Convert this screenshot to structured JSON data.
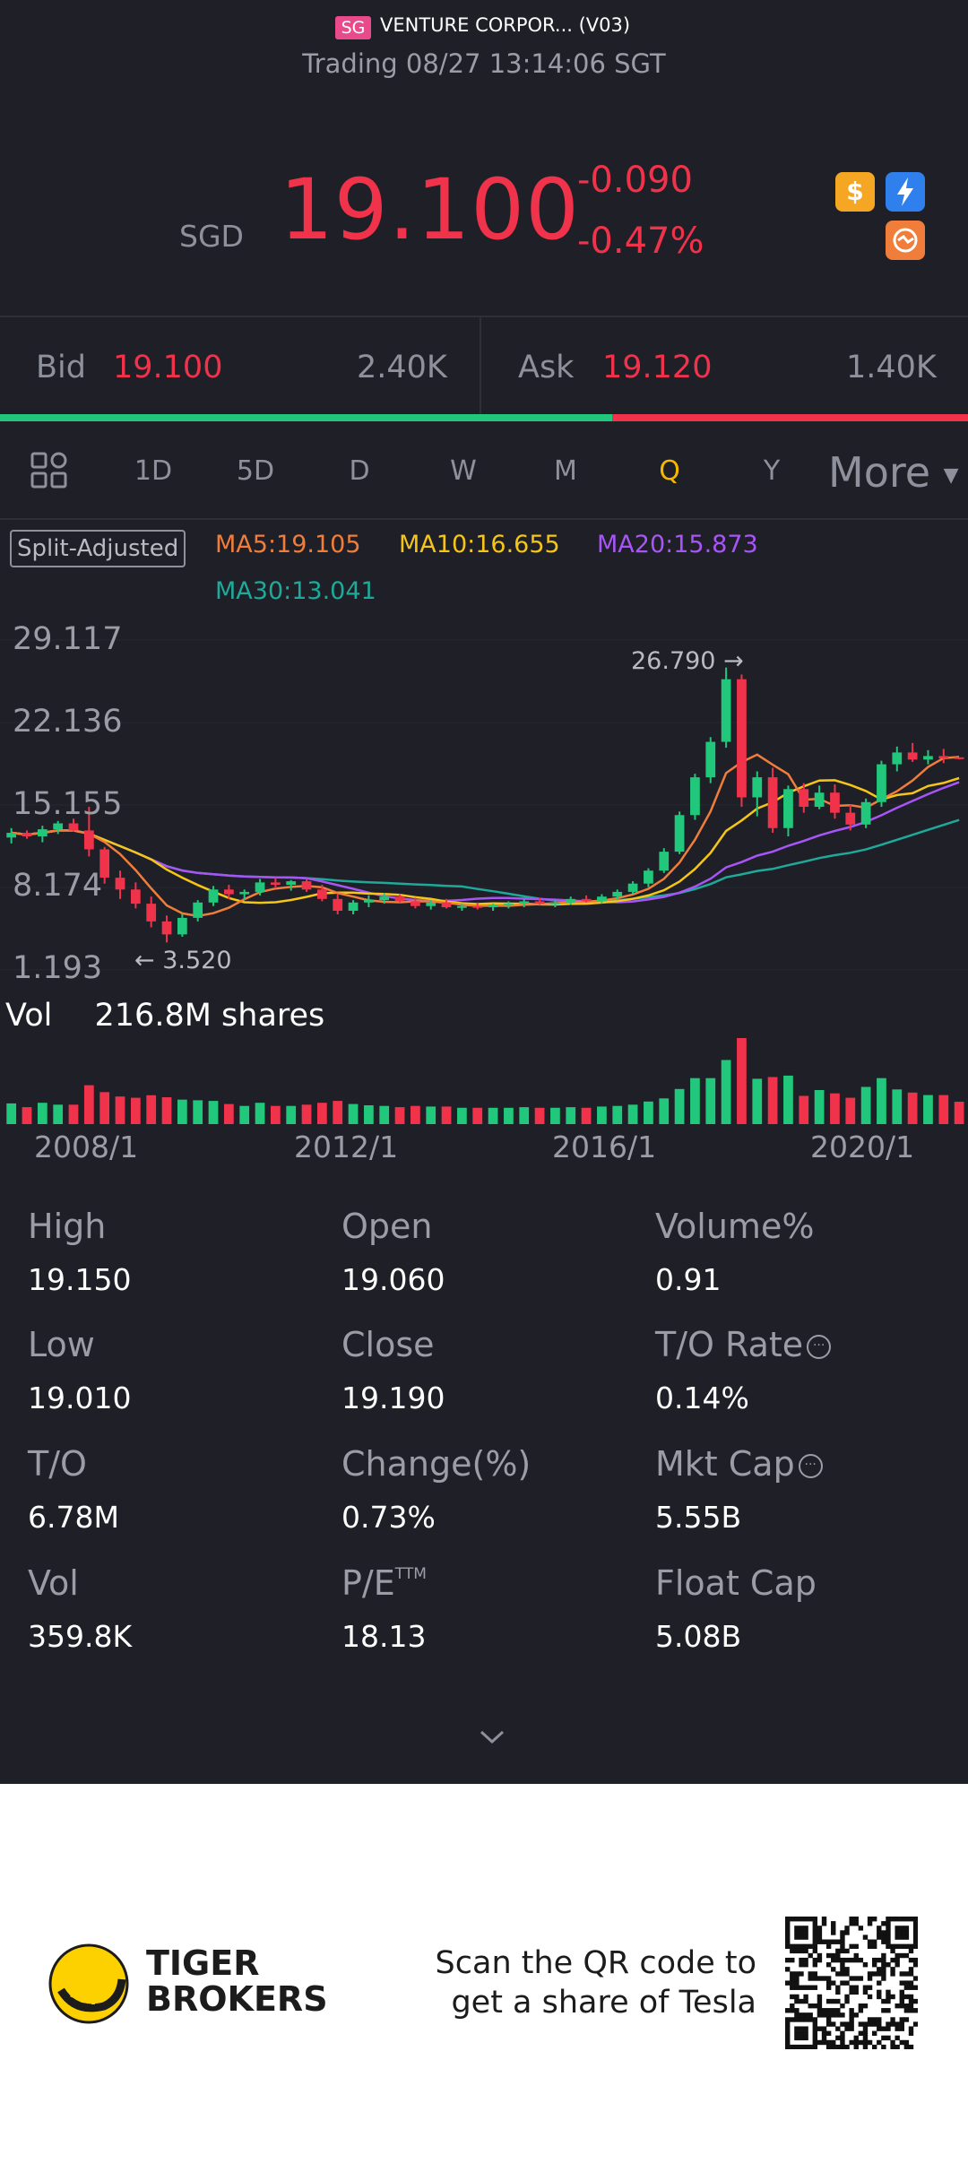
{
  "header": {
    "market_tag": "SG",
    "name": "VENTURE CORPOR... (V03)",
    "status": "Trading 08/27 13:14:06 SGT"
  },
  "quote": {
    "currency": "SGD",
    "price": "19.100",
    "change": "-0.090",
    "change_pct": "-0.47%"
  },
  "icons": [
    "dollar-icon",
    "lightning-icon",
    "flag-icon"
  ],
  "bidask": {
    "bid_label": "Bid",
    "bid_price": "19.100",
    "bid_size": "2.40K",
    "ask_label": "Ask",
    "ask_price": "19.120",
    "ask_size": "1.40K",
    "bid_ratio": 0.632
  },
  "periods": {
    "tabs": [
      "1D",
      "5D",
      "D",
      "W",
      "M",
      "Q",
      "Y"
    ],
    "active": "Q",
    "more": "More"
  },
  "chart_labels": {
    "split": "Split-Adjusted",
    "ma5": "MA5:19.105",
    "ma10": "MA10:16.655",
    "ma20": "MA20:15.873",
    "ma30": "MA30:13.041",
    "high_marker": "26.790",
    "low_marker": "3.520",
    "volume_label": "Vol",
    "volume_value": "216.8M shares"
  },
  "colors": {
    "up": "#21c77a",
    "down": "#f0324b",
    "ma5": "#f07d3a",
    "ma10": "#f5c518",
    "ma20": "#a855f7",
    "ma30": "#1fa99a",
    "active_tab": "#f5b800"
  },
  "chart_data": {
    "type": "candlestick",
    "y_ticks": [
      "29.117",
      "22.136",
      "15.155",
      "8.174",
      "1.193"
    ],
    "ylim": [
      1.193,
      29.117
    ],
    "x_ticks": [
      "2008/1",
      "2012/1",
      "2016/1",
      "2020/1"
    ],
    "quarter_start": 2007.0,
    "candles": [
      [
        12.4,
        13.2,
        11.9,
        12.8
      ],
      [
        12.8,
        13.0,
        12.3,
        12.5
      ],
      [
        12.5,
        13.4,
        12.0,
        13.1
      ],
      [
        13.1,
        13.8,
        12.7,
        13.6
      ],
      [
        13.6,
        14.0,
        12.9,
        13.0
      ],
      [
        13.0,
        15.0,
        10.8,
        11.4
      ],
      [
        11.4,
        11.6,
        8.5,
        9.0
      ],
      [
        9.0,
        9.6,
        7.2,
        8.0
      ],
      [
        8.0,
        8.6,
        6.4,
        6.8
      ],
      [
        6.8,
        7.4,
        4.8,
        5.3
      ],
      [
        5.3,
        5.8,
        3.52,
        4.2
      ],
      [
        4.2,
        5.9,
        4.0,
        5.6
      ],
      [
        5.6,
        7.1,
        5.3,
        6.9
      ],
      [
        6.9,
        8.3,
        6.6,
        8.0
      ],
      [
        8.0,
        8.4,
        7.2,
        7.6
      ],
      [
        7.6,
        8.0,
        7.1,
        7.8
      ],
      [
        7.8,
        8.9,
        7.5,
        8.6
      ],
      [
        8.6,
        9.0,
        8.1,
        8.4
      ],
      [
        8.4,
        8.8,
        7.9,
        8.7
      ],
      [
        8.7,
        8.9,
        7.8,
        8.0
      ],
      [
        8.0,
        8.4,
        7.0,
        7.2
      ],
      [
        7.2,
        7.6,
        5.9,
        6.2
      ],
      [
        6.2,
        7.1,
        5.9,
        6.9
      ],
      [
        6.9,
        7.5,
        6.5,
        7.1
      ],
      [
        7.1,
        7.7,
        6.8,
        7.4
      ],
      [
        7.4,
        7.6,
        6.9,
        7.0
      ],
      [
        7.0,
        7.3,
        6.4,
        6.6
      ],
      [
        6.6,
        7.1,
        6.3,
        6.9
      ],
      [
        6.9,
        7.2,
        6.4,
        6.5
      ],
      [
        6.5,
        6.8,
        6.2,
        6.6
      ],
      [
        6.6,
        6.9,
        6.3,
        6.5
      ],
      [
        6.5,
        6.8,
        6.2,
        6.7
      ],
      [
        6.7,
        7.0,
        6.4,
        6.8
      ],
      [
        6.8,
        7.2,
        6.5,
        7.0
      ],
      [
        7.0,
        7.3,
        6.7,
        6.8
      ],
      [
        6.8,
        7.1,
        6.5,
        6.9
      ],
      [
        6.9,
        7.4,
        6.7,
        7.2
      ],
      [
        7.2,
        7.5,
        6.9,
        7.0
      ],
      [
        7.0,
        7.6,
        6.8,
        7.4
      ],
      [
        7.4,
        8.0,
        7.1,
        7.8
      ],
      [
        7.8,
        8.7,
        7.6,
        8.5
      ],
      [
        8.5,
        9.8,
        8.2,
        9.6
      ],
      [
        9.6,
        11.5,
        9.4,
        11.2
      ],
      [
        11.2,
        14.6,
        11.0,
        14.3
      ],
      [
        14.3,
        17.8,
        13.9,
        17.5
      ],
      [
        17.5,
        20.9,
        17.0,
        20.5
      ],
      [
        20.5,
        26.79,
        20.0,
        25.8
      ],
      [
        25.8,
        26.2,
        15.0,
        15.8
      ],
      [
        15.8,
        18.0,
        14.2,
        17.5
      ],
      [
        17.5,
        18.3,
        12.8,
        13.2
      ],
      [
        13.2,
        16.8,
        12.5,
        16.5
      ],
      [
        16.5,
        17.0,
        14.5,
        15.0
      ],
      [
        15.0,
        16.8,
        14.8,
        16.2
      ],
      [
        16.2,
        16.9,
        14.0,
        14.5
      ],
      [
        14.5,
        15.2,
        13.0,
        13.5
      ],
      [
        13.5,
        15.7,
        13.2,
        15.4
      ],
      [
        15.4,
        18.9,
        15.0,
        18.6
      ],
      [
        18.6,
        20.1,
        18.0,
        19.6
      ],
      [
        19.6,
        20.4,
        18.8,
        19.0
      ],
      [
        19.0,
        19.8,
        18.6,
        19.3
      ],
      [
        19.3,
        19.9,
        18.7,
        19.1
      ],
      [
        19.19,
        19.15,
        19.01,
        19.1
      ]
    ],
    "ma5_stats": {
      "name": "MA5",
      "last": 19.105
    },
    "ma10_stats": {
      "name": "MA10",
      "last": 16.655
    },
    "ma20_stats": {
      "name": "MA20",
      "last": 15.873
    },
    "ma30_stats": {
      "name": "MA30",
      "last": 13.041
    }
  },
  "stats": [
    {
      "label": "High",
      "value": "19.150",
      "info": false
    },
    {
      "label": "Open",
      "value": "19.060",
      "info": false
    },
    {
      "label": "Volume%",
      "value": "0.91",
      "info": false
    },
    {
      "label": "Low",
      "value": "19.010",
      "info": false
    },
    {
      "label": "Close",
      "value": "19.190",
      "info": false
    },
    {
      "label": "T/O Rate",
      "value": "0.14%",
      "info": true
    },
    {
      "label": "T/O",
      "value": "6.78M",
      "info": false
    },
    {
      "label": "Change(%)",
      "value": "0.73%",
      "info": false
    },
    {
      "label": "Mkt Cap",
      "value": "5.55B",
      "info": true
    },
    {
      "label": "Vol",
      "value": "359.8K",
      "info": false
    },
    {
      "label": "P/E",
      "value": "18.13",
      "info": false,
      "sup": "TTM"
    },
    {
      "label": "Float Cap",
      "value": "5.08B",
      "info": false
    }
  ],
  "footer": {
    "brand_line1": "TIGER",
    "brand_line2": "BROKERS",
    "qr_line1": "Scan the QR code to",
    "qr_line2": "get a share of Tesla"
  }
}
